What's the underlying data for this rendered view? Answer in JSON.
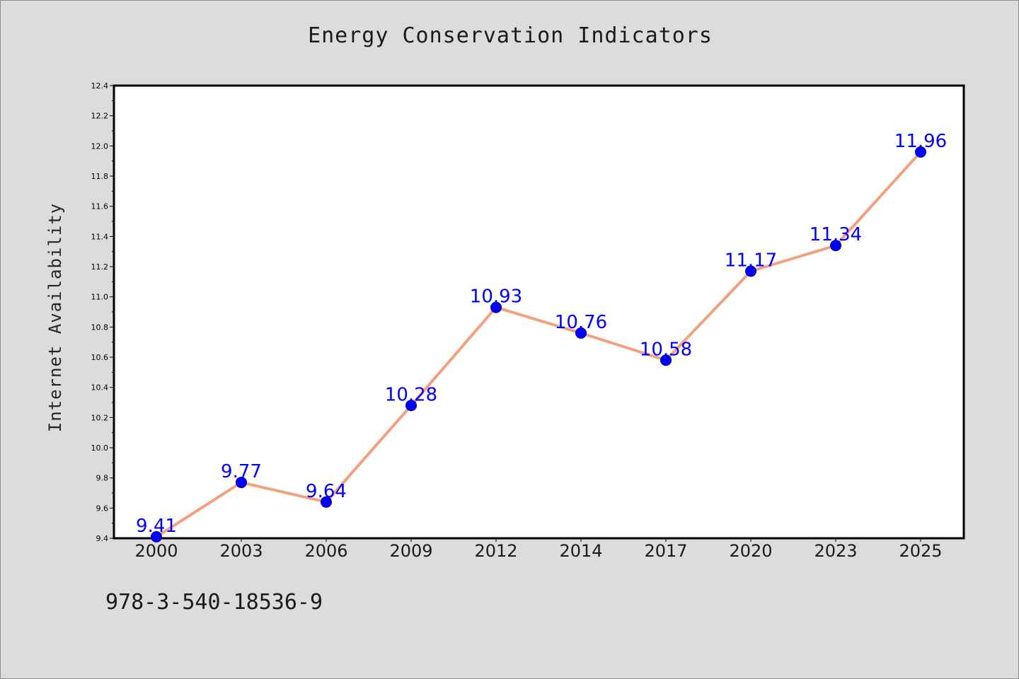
{
  "chart_data": {
    "type": "line",
    "title": "Energy Conservation Indicators",
    "xlabel": "",
    "ylabel": "Internet Availability",
    "categories": [
      "2000",
      "2003",
      "2006",
      "2009",
      "2012",
      "2014",
      "2017",
      "2020",
      "2023",
      "2025"
    ],
    "series": [
      {
        "values": [
          9.41,
          9.77,
          9.64,
          10.28,
          10.93,
          10.76,
          10.58,
          11.17,
          11.34,
          11.96
        ],
        "line_color": "#f4a07f",
        "marker_color": "#0000ff",
        "label_color": "#0000ff"
      }
    ],
    "ylim": [
      9.4,
      12.4
    ],
    "yticks": [
      "9.4",
      "9.6",
      "9.8",
      "10.0",
      "10.2",
      "10.4",
      "10.6",
      "10.8",
      "11.0",
      "11.2",
      "11.4",
      "11.6",
      "11.8",
      "12.0",
      "12.2",
      "12.4"
    ],
    "grid": false,
    "data_labels": true
  },
  "footer": {
    "code": "978-3-540-18536-9"
  }
}
